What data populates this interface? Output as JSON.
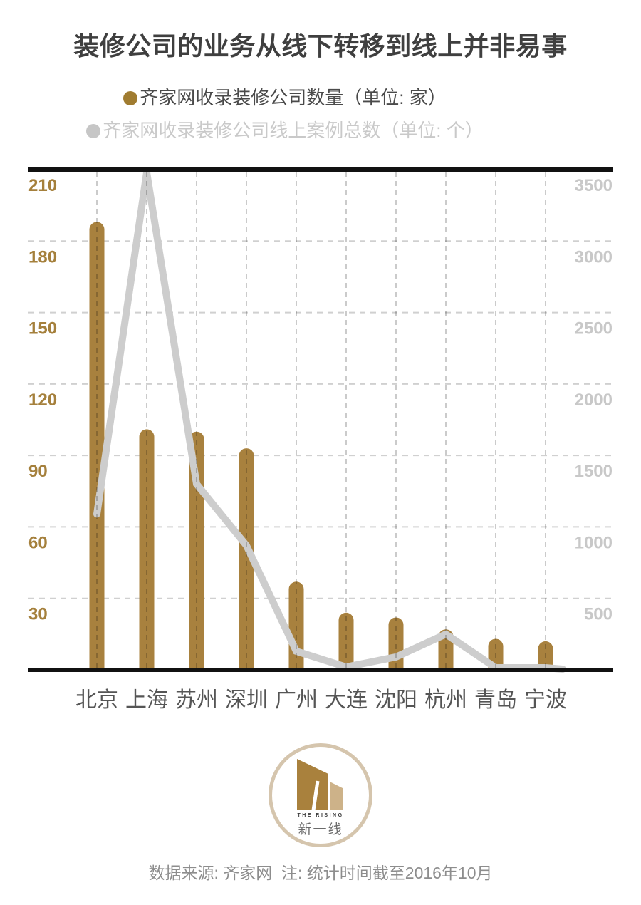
{
  "page": {
    "background": "#ffffff"
  },
  "title": {
    "text": "装修公司的业务从线下转移到线上并非易事",
    "color": "#3f3f3f"
  },
  "legend": {
    "items": [
      {
        "label": "齐家网收录装修公司数量（单位: 家）",
        "dot_color": "#a07c30",
        "text_color": "#4a4a4a"
      },
      {
        "label": "齐家网收录装修公司线上案例总数（单位: 个）",
        "dot_color": "#c6c6c6",
        "text_color": "#c9c9c9"
      }
    ]
  },
  "chart_data": {
    "type": "bar",
    "subtype": "bar+line dual-axis combo",
    "categories": [
      "北京",
      "上海",
      "苏州",
      "深圳",
      "广州",
      "大连",
      "沈阳",
      "杭州",
      "青岛",
      "宁波"
    ],
    "series": [
      {
        "name": "齐家网收录装修公司数量（单位: 家）",
        "type": "bar",
        "axis": "left",
        "color": "#a8813e",
        "values": [
          188,
          101,
          100,
          93,
          37,
          24,
          22,
          17,
          13,
          12
        ]
      },
      {
        "name": "齐家网收录装修公司线上案例总数（单位: 个）",
        "type": "line",
        "axis": "right",
        "color": "#cdcdcd",
        "values": [
          1090,
          3480,
          1300,
          870,
          130,
          20,
          90,
          250,
          15,
          15
        ]
      }
    ],
    "left_axis": {
      "ticks": [
        210,
        180,
        150,
        120,
        90,
        60,
        30
      ],
      "min": 0,
      "max": 210,
      "color": "#a5803c"
    },
    "right_axis": {
      "ticks": [
        3500,
        3000,
        2500,
        2000,
        1500,
        1000,
        500
      ],
      "min": 0,
      "max": 3500,
      "color": "#c8c8c8"
    },
    "x_label_color": "#555555",
    "grid": "dashed gray, horizontal and vertical",
    "legend_position": "top-center",
    "title": "装修公司的业务从线下转移到线上并非易事"
  },
  "logo": {
    "top_text": "THE RISING",
    "name": "新一线",
    "ring_color": "#d5c5ad",
    "mark_dark": "#a9813d",
    "mark_light": "#cdb289"
  },
  "footer": {
    "text": "数据来源: 齐家网  注: 统计时间截至2016年10月"
  }
}
